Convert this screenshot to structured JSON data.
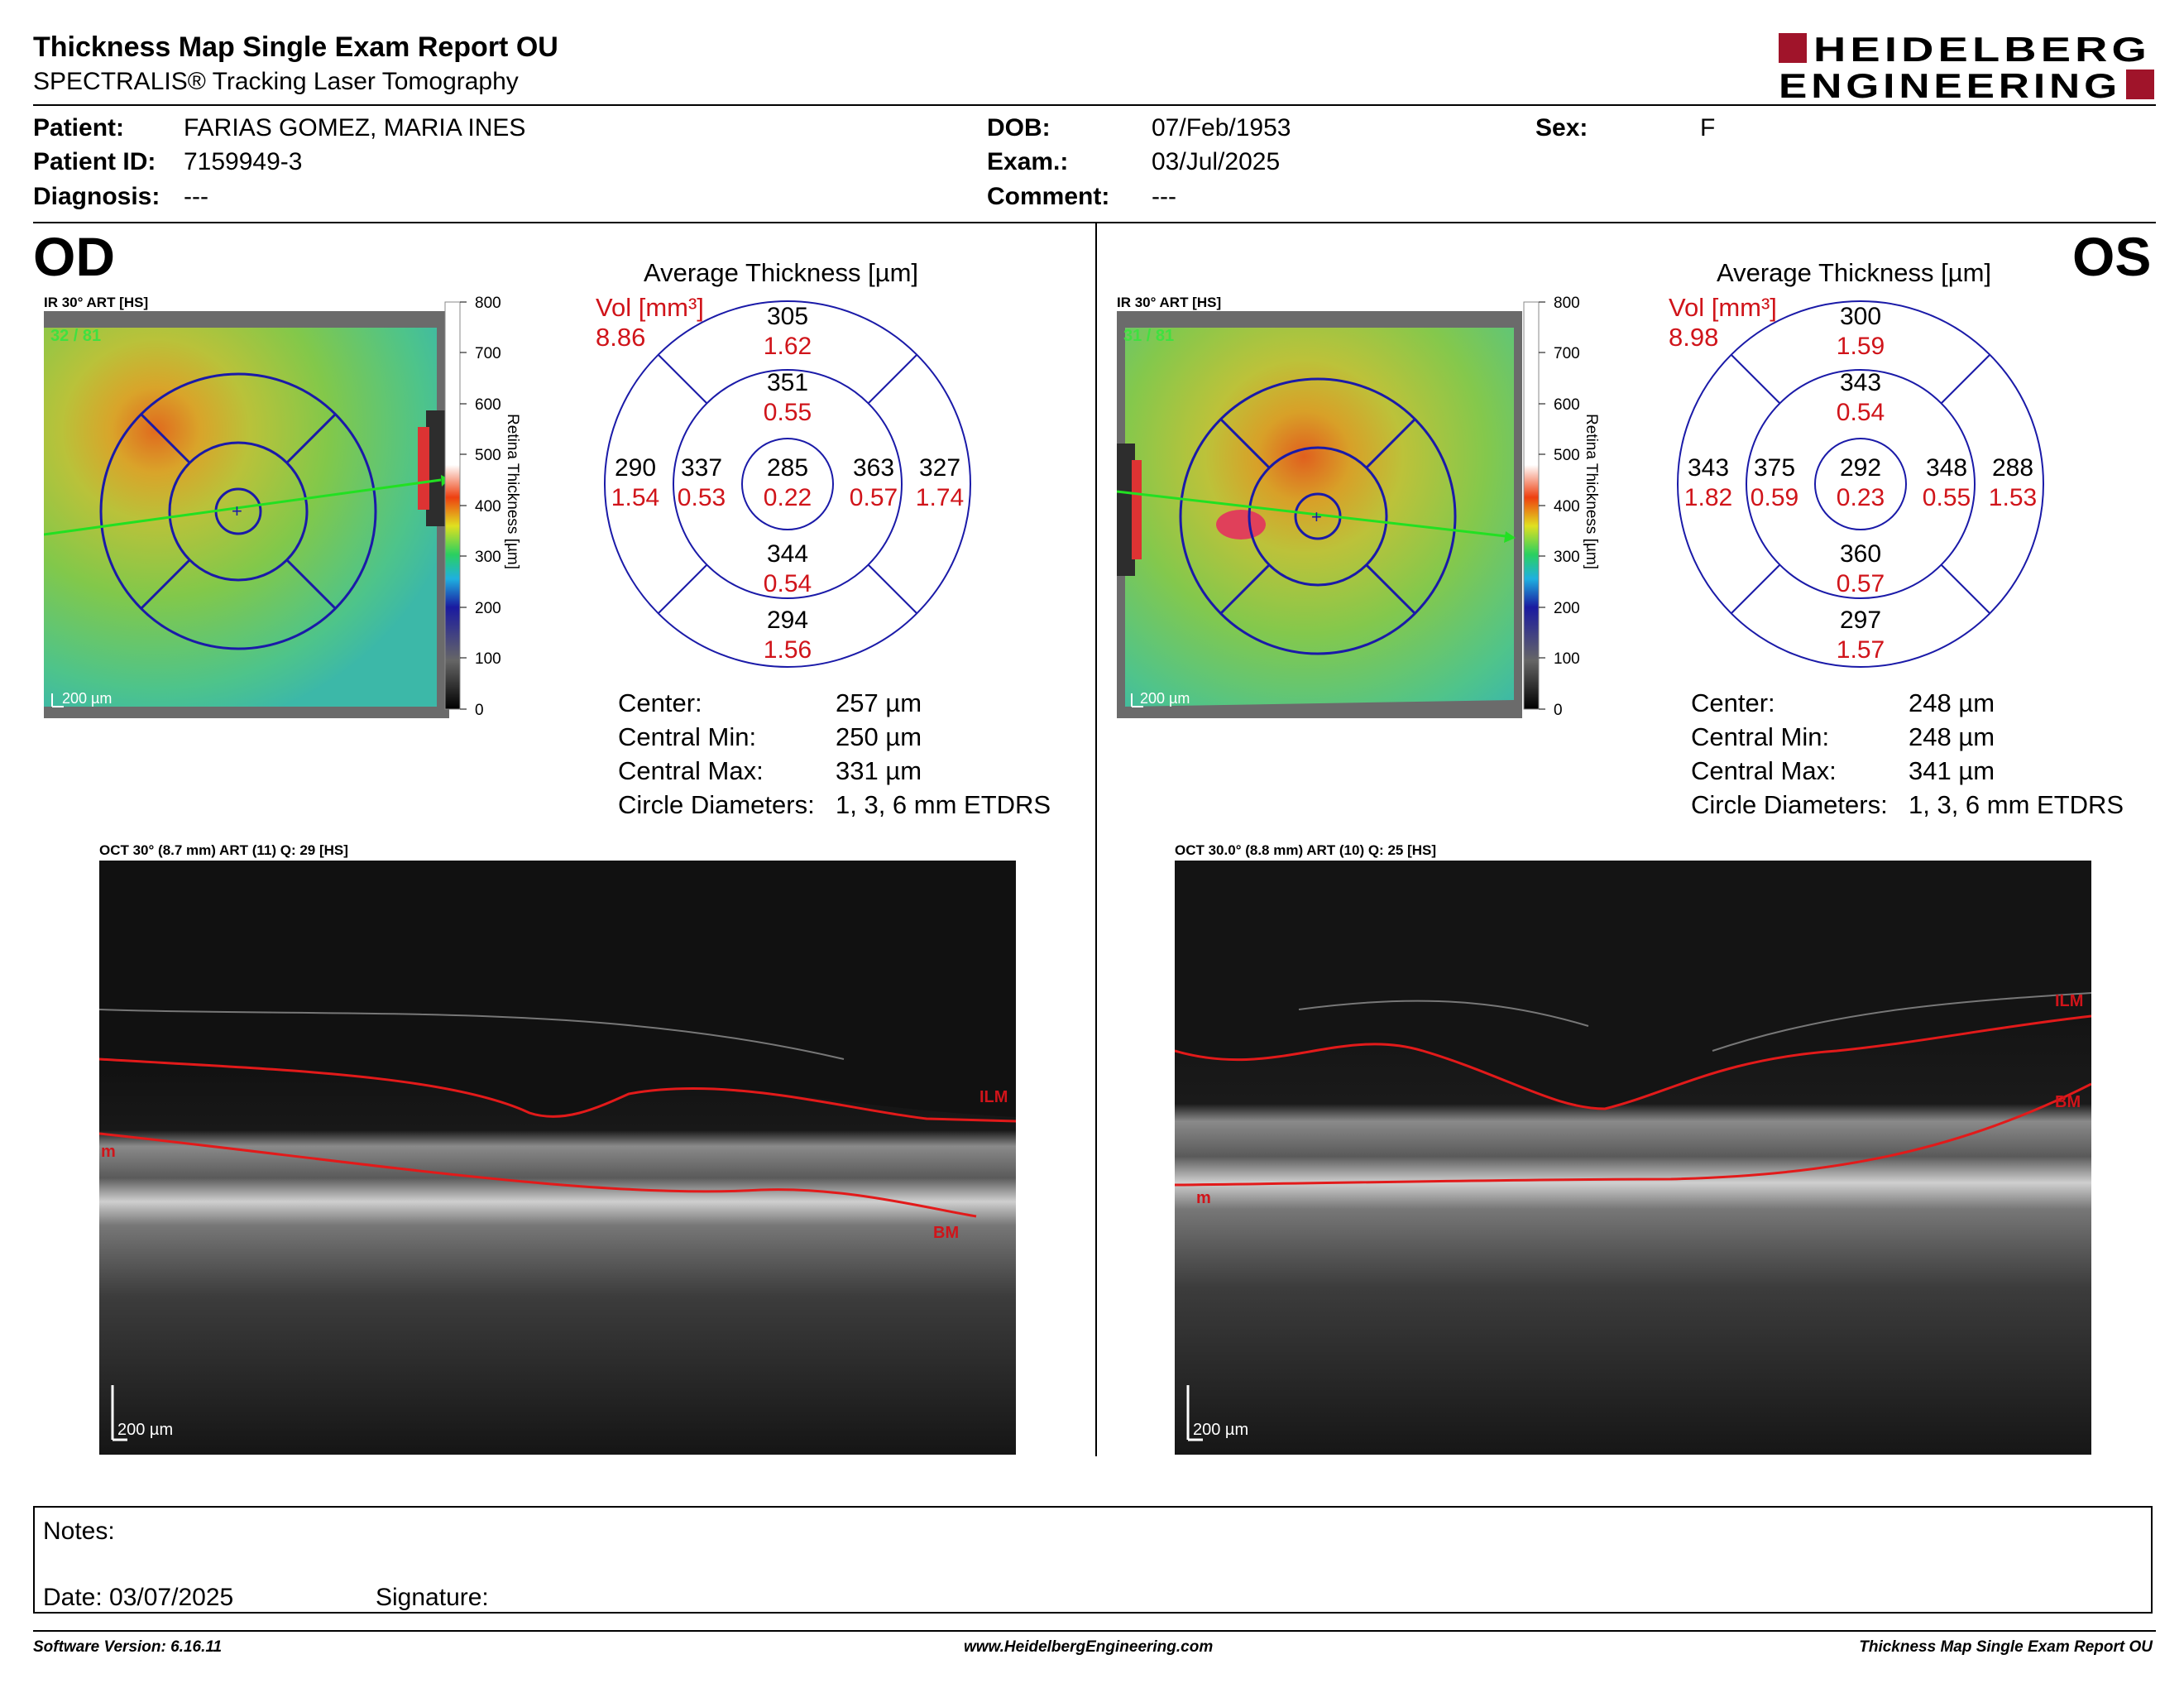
{
  "header": {
    "title": "Thickness Map Single Exam Report OU",
    "subtitle": "SPECTRALIS® Tracking Laser Tomography",
    "logo_line1": "HEIDELBERG",
    "logo_line2": "ENGINEERING"
  },
  "patient": {
    "patient_label": "Patient:",
    "patient_value": "FARIAS GOMEZ, MARIA INES",
    "id_label": "Patient ID:",
    "id_value": "7159949-3",
    "diagnosis_label": "Diagnosis:",
    "diagnosis_value": "---",
    "dob_label": "DOB:",
    "dob_value": "07/Feb/1953",
    "exam_label": "Exam.:",
    "exam_value": "03/Jul/2025",
    "comment_label": "Comment:",
    "comment_value": "---",
    "sex_label": "Sex:",
    "sex_value": "F"
  },
  "od": {
    "eye": "OD",
    "ir_label": "IR 30° ART [HS]",
    "frame_count": "32 / 81",
    "scale_bar": "200 µm",
    "colorbar_ticks": [
      "800",
      "700",
      "600",
      "500",
      "400",
      "300",
      "200",
      "100",
      "0"
    ],
    "colorbar_title": "Retina Thickness [µm]",
    "avg_title": "Average Thickness [µm]",
    "vol_label": "Vol [mm³]",
    "vol_total": "8.86",
    "etdrs": {
      "center": {
        "t": "285",
        "v": "0.22"
      },
      "inner_sup": {
        "t": "351",
        "v": "0.55"
      },
      "inner_nas": {
        "t": "337",
        "v": "0.53"
      },
      "inner_tmp": {
        "t": "363",
        "v": "0.57"
      },
      "inner_inf": {
        "t": "344",
        "v": "0.54"
      },
      "outer_sup": {
        "t": "305",
        "v": "1.62"
      },
      "outer_nas": {
        "t": "290",
        "v": "1.54"
      },
      "outer_tmp": {
        "t": "327",
        "v": "1.74"
      },
      "outer_inf": {
        "t": "294",
        "v": "1.56"
      }
    },
    "stats": [
      {
        "label": "Center:",
        "value": "257 µm"
      },
      {
        "label": "Central Min:",
        "value": "250 µm"
      },
      {
        "label": "Central Max:",
        "value": "331 µm"
      },
      {
        "label": "Circle Diameters:",
        "value": "1, 3, 6 mm ETDRS"
      }
    ],
    "oct_label": "OCT 30° (8.7 mm) ART (11) Q: 29 [HS]",
    "oct_scale": "200 µm",
    "ilm": "ILM",
    "bm": "BM",
    "m": "m"
  },
  "os": {
    "eye": "OS",
    "ir_label": "IR 30° ART [HS]",
    "frame_count": "31 / 81",
    "scale_bar": "200 µm",
    "colorbar_ticks": [
      "800",
      "700",
      "600",
      "500",
      "400",
      "300",
      "200",
      "100",
      "0"
    ],
    "colorbar_title": "Retina Thickness [µm]",
    "avg_title": "Average Thickness [µm]",
    "vol_label": "Vol [mm³]",
    "vol_total": "8.98",
    "etdrs": {
      "center": {
        "t": "292",
        "v": "0.23"
      },
      "inner_sup": {
        "t": "343",
        "v": "0.54"
      },
      "inner_nas": {
        "t": "375",
        "v": "0.59"
      },
      "inner_tmp": {
        "t": "348",
        "v": "0.55"
      },
      "inner_inf": {
        "t": "360",
        "v": "0.57"
      },
      "outer_sup": {
        "t": "300",
        "v": "1.59"
      },
      "outer_nas": {
        "t": "343",
        "v": "1.82"
      },
      "outer_tmp": {
        "t": "288",
        "v": "1.53"
      },
      "outer_inf": {
        "t": "297",
        "v": "1.57"
      }
    },
    "stats": [
      {
        "label": "Center:",
        "value": "248 µm"
      },
      {
        "label": "Central Min:",
        "value": "248 µm"
      },
      {
        "label": "Central Max:",
        "value": "341 µm"
      },
      {
        "label": "Circle Diameters:",
        "value": "1, 3, 6 mm ETDRS"
      }
    ],
    "oct_label": "OCT 30.0° (8.8 mm) ART (10) Q: 25 [HS]",
    "oct_scale": "200 µm",
    "ilm": "ILM",
    "bm": "BM",
    "m": "m"
  },
  "notes": {
    "notes_label": "Notes:",
    "date_label": "Date: 03/07/2025",
    "signature_label": "Signature:"
  },
  "footer": {
    "software": "Software Version: 6.16.11",
    "website": "www.HeidelbergEngineering.com",
    "report": "Thickness Map Single Exam Report OU"
  }
}
